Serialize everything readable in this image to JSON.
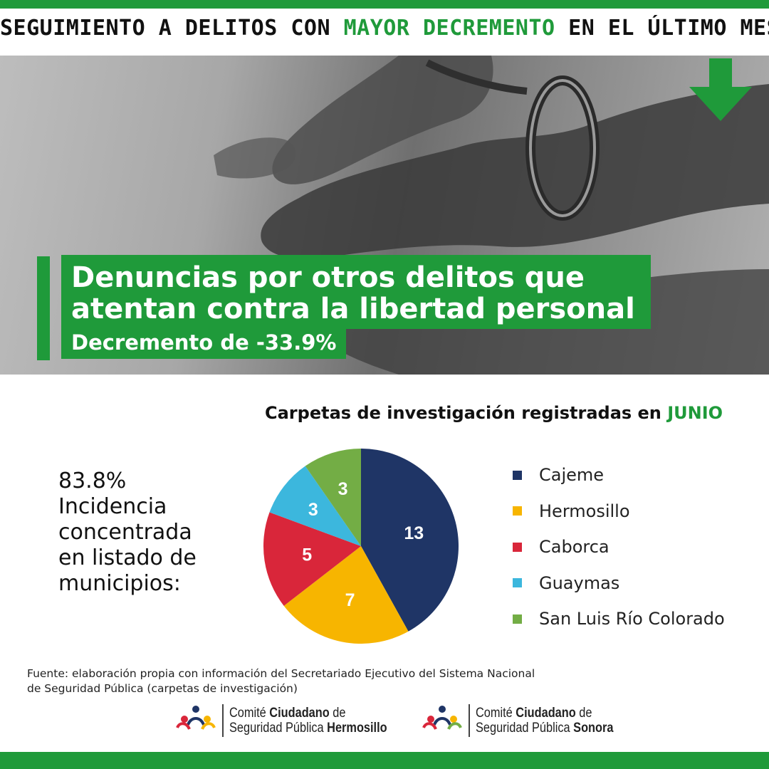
{
  "header": {
    "title_prefix": "SEGUIMIENTO A DELITOS CON ",
    "title_highlight": "MAYOR DECREMENTO",
    "title_suffix": " EN EL ÚLTIMO MES."
  },
  "headline": {
    "line1": "Denuncias por otros delitos que",
    "line2": "atentan contra la libertad personal",
    "subline": "Decremento de -33.9%"
  },
  "side_note": {
    "percent": "83.8%",
    "line1": "Incidencia",
    "line2": "concentrada",
    "line3": "en listado de",
    "line4": "municipios:"
  },
  "chart_data": {
    "type": "pie",
    "title_prefix": "Carpetas de investigación registradas en ",
    "title_highlight": "JUNIO",
    "categories": [
      "Cajeme",
      "Hermosillo",
      "Caborca",
      "Guaymas",
      "San Luis Río Colorado"
    ],
    "values": [
      13,
      7,
      5,
      3,
      3
    ],
    "colors": [
      "#1f3566",
      "#f7b500",
      "#d9263a",
      "#3cb7dd",
      "#73ad45"
    ],
    "legend_position": "right"
  },
  "source": {
    "line1": "Fuente: elaboración propia con información del Secretariado Ejecutivo del Sistema Nacional",
    "line2": "de Seguridad Pública (carpetas de investigación)"
  },
  "logos": [
    {
      "pre": "Comité ",
      "bold1": "Ciudadano",
      "post1": " de",
      "pre2": "Seguridad Pública ",
      "bold2": "Hermosillo"
    },
    {
      "pre": "Comité ",
      "bold1": "Ciudadano",
      "post1": " de",
      "pre2": "Seguridad Pública ",
      "bold2": "Sonora"
    }
  ],
  "colors": {
    "accent": "#1f9a3a"
  }
}
